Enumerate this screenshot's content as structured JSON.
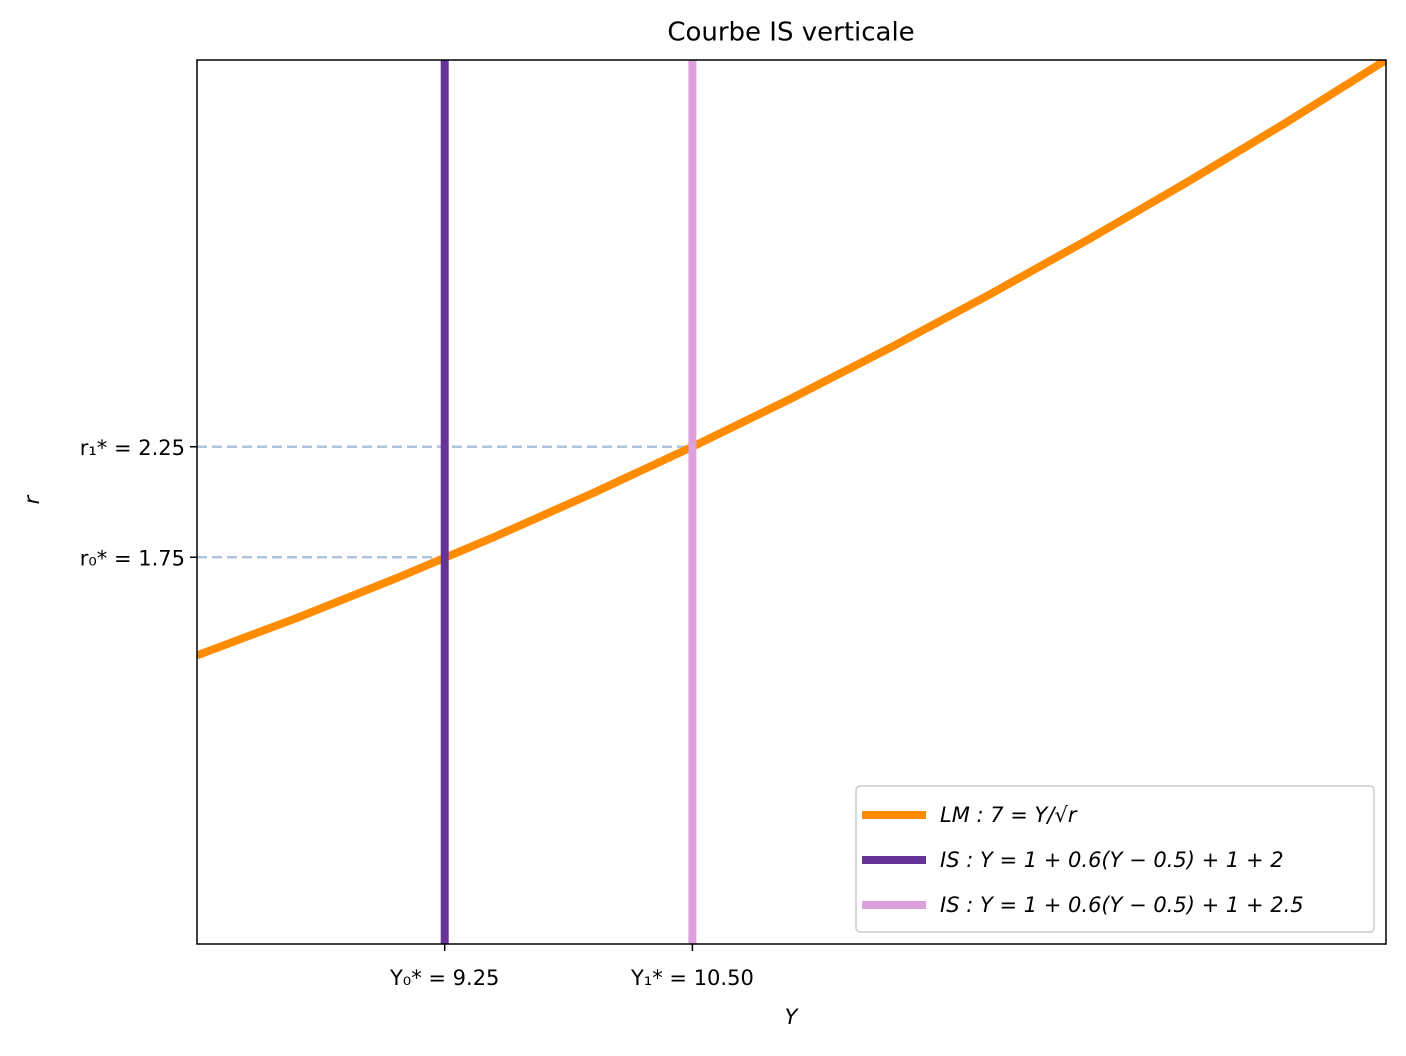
{
  "chart_data": {
    "type": "line",
    "title": "Courbe IS verticale",
    "x_label": "Y",
    "y_label": "r",
    "series": [
      {
        "name": "LM : 7 = Y/√r",
        "color": "#ff8c00",
        "x": [
          8,
          8.5,
          9,
          9.5,
          10,
          10.5,
          11,
          11.5,
          12,
          12.5,
          13,
          13.5,
          14
        ],
        "values": [
          1.306,
          1.474,
          1.653,
          1.842,
          2.041,
          2.25,
          2.469,
          2.699,
          2.939,
          3.189,
          3.449,
          3.719,
          4.0
        ]
      },
      {
        "name": "IS : Y = 1 + 0.6(Y − 0.5) + 1 + 2",
        "color": "#663399",
        "x": [
          9.25,
          9.25
        ],
        "values": [
          0,
          4
        ]
      },
      {
        "name": "IS : Y = 1 + 0.6(Y − 0.5) + 1 + 2.5",
        "color": "#dda0dd",
        "x": [
          10.5,
          10.5
        ],
        "values": [
          0,
          4
        ]
      }
    ],
    "xlim": [
      8,
      14
    ],
    "ylim": [
      0,
      4
    ],
    "xticks": [
      {
        "value": 9.25,
        "label": "Y₀* = 9.25"
      },
      {
        "value": 10.5,
        "label": "Y₁* = 10.50"
      }
    ],
    "yticks": [
      {
        "value": 1.75,
        "label": "r₀* = 1.75"
      },
      {
        "value": 2.25,
        "label": "r₁* = 2.25"
      }
    ],
    "guide_color": "#b0c4de",
    "legend": "lower right"
  }
}
